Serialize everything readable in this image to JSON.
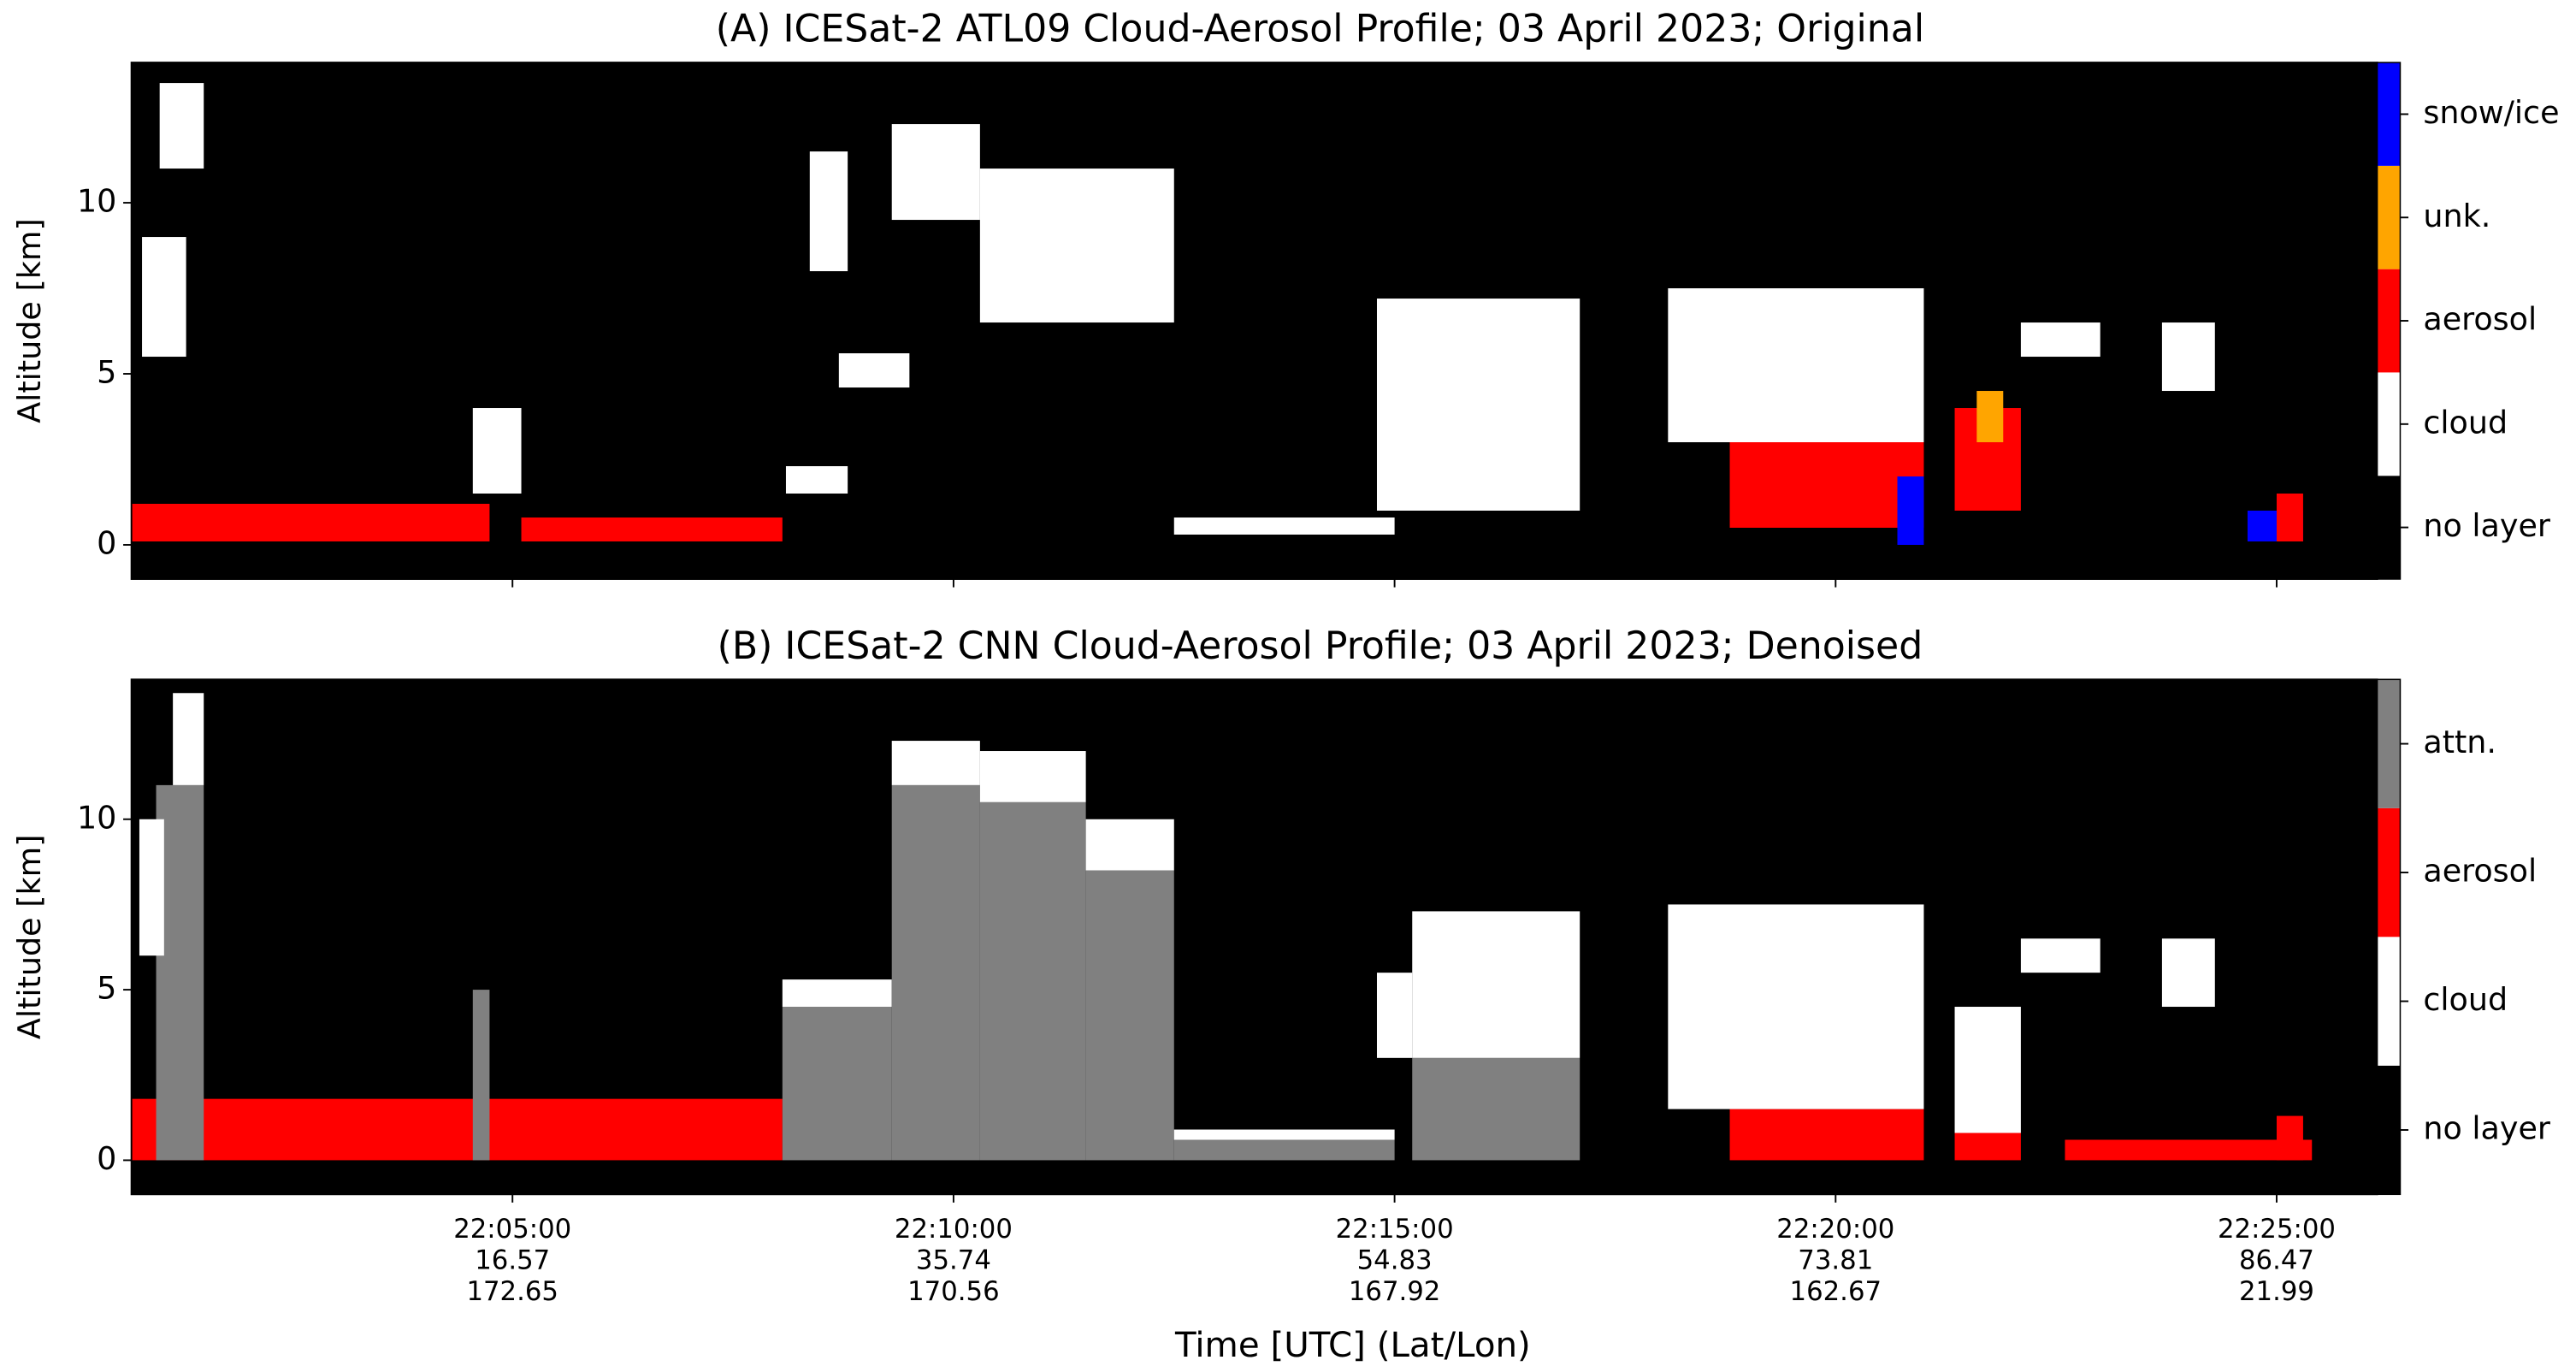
{
  "chart_data": [
    {
      "type": "heatmap",
      "title": "(A) ICESat-2 ATL09 Cloud-Aerosol Profile; 03 April 2023; Original",
      "ylabel": "Altitude [km]",
      "xlim": [
        0.68,
        26.14
      ],
      "ylim": [
        -1,
        14.1
      ],
      "yticks": [
        0,
        5,
        10
      ],
      "background": "#000000",
      "colorbar": {
        "labels": [
          "no layer",
          "cloud",
          "aerosol",
          "unk.",
          "snow/ice"
        ],
        "colors": [
          "#000000",
          "#ffffff",
          "#ff0000",
          "#ffa500",
          "#0000ff"
        ]
      },
      "features": [
        {
          "start": 0.68,
          "end": 4.74,
          "bottom": 0.1,
          "top": 1.2,
          "class": 2
        },
        {
          "start": 1.0,
          "end": 1.5,
          "bottom": 11,
          "top": 13.5,
          "class": 1
        },
        {
          "start": 0.8,
          "end": 1.3,
          "bottom": 5.5,
          "top": 9,
          "class": 1
        },
        {
          "start": 4.55,
          "end": 5.1,
          "bottom": 1.5,
          "top": 4,
          "class": 1
        },
        {
          "start": 5.1,
          "end": 8.06,
          "bottom": 0.1,
          "top": 0.8,
          "class": 2
        },
        {
          "start": 8.1,
          "end": 8.8,
          "bottom": 1.5,
          "top": 2.3,
          "class": 1
        },
        {
          "start": 8.37,
          "end": 8.8,
          "bottom": 8,
          "top": 11.5,
          "class": 1
        },
        {
          "start": 8.7,
          "end": 9.5,
          "bottom": 4.6,
          "top": 5.6,
          "class": 1
        },
        {
          "start": 9.3,
          "end": 10.3,
          "bottom": 9.5,
          "top": 12.3,
          "class": 1
        },
        {
          "start": 10.3,
          "end": 12.5,
          "bottom": 6.5,
          "top": 11,
          "class": 1
        },
        {
          "start": 12.5,
          "end": 15,
          "bottom": 0.3,
          "top": 0.8,
          "class": 1
        },
        {
          "start": 14.8,
          "end": 17.1,
          "bottom": 1,
          "top": 7.2,
          "class": 1
        },
        {
          "start": 18.8,
          "end": 21,
          "bottom": 0.5,
          "top": 3,
          "class": 2
        },
        {
          "start": 18.1,
          "end": 21,
          "bottom": 3,
          "top": 7.5,
          "class": 1
        },
        {
          "start": 20.7,
          "end": 21,
          "bottom": 0,
          "top": 2,
          "class": 4
        },
        {
          "start": 21.35,
          "end": 22.1,
          "bottom": 1,
          "top": 4,
          "class": 2
        },
        {
          "start": 21.6,
          "end": 21.9,
          "bottom": 3,
          "top": 4.5,
          "class": 3
        },
        {
          "start": 22.1,
          "end": 23.0,
          "bottom": 5.5,
          "top": 6.5,
          "class": 1
        },
        {
          "start": 23.7,
          "end": 24.3,
          "bottom": 4.5,
          "top": 6.5,
          "class": 1
        },
        {
          "start": 24.67,
          "end": 25.3,
          "bottom": 0.1,
          "top": 1,
          "class": 4
        },
        {
          "start": 25.0,
          "end": 25.3,
          "bottom": 0.1,
          "top": 1.5,
          "class": 2
        }
      ]
    },
    {
      "type": "heatmap",
      "title": "(B) ICESat-2 CNN Cloud-Aerosol Profile; 03 April 2023; Denoised",
      "ylabel": "Altitude [km]",
      "xlabel": "Time [UTC] (Lat/Lon)",
      "xlim": [
        0.68,
        26.14
      ],
      "ylim": [
        -1,
        14.1
      ],
      "yticks": [
        0,
        5,
        10
      ],
      "background": "#000000",
      "xticks": [
        {
          "value": 5,
          "label": "22:05:00"
        },
        {
          "value": 10,
          "label": "22:10:00"
        },
        {
          "value": 15,
          "label": "22:15:00"
        },
        {
          "value": 20,
          "label": "22:20:00"
        },
        {
          "value": 25,
          "label": "22:25:00"
        }
      ],
      "xtick_lat": [
        "16.57",
        "35.74",
        "54.83",
        "73.81",
        "86.47"
      ],
      "xtick_lon": [
        "172.65",
        "170.56",
        "167.92",
        "162.67",
        "21.99"
      ],
      "colorbar": {
        "labels": [
          "no layer",
          "cloud",
          "aerosol",
          "attn."
        ],
        "colors": [
          "#000000",
          "#ffffff",
          "#ff0000",
          "#808080"
        ]
      },
      "features": [
        {
          "start": 0.68,
          "end": 8.06,
          "bottom": 0,
          "top": 1.8,
          "class": 2
        },
        {
          "start": 0.96,
          "end": 1.5,
          "bottom": 0,
          "top": 11,
          "class": 3
        },
        {
          "start": 1.15,
          "end": 1.5,
          "bottom": 11,
          "top": 13.7,
          "class": 1
        },
        {
          "start": 0.77,
          "end": 1.05,
          "bottom": 6,
          "top": 10,
          "class": 1
        },
        {
          "start": 4.55,
          "end": 4.74,
          "bottom": 0,
          "top": 5,
          "class": 3
        },
        {
          "start": 8.06,
          "end": 9.3,
          "bottom": 0,
          "top": 4.5,
          "class": 3
        },
        {
          "start": 8.06,
          "end": 9.3,
          "bottom": 4.5,
          "top": 5.3,
          "class": 1
        },
        {
          "start": 9.3,
          "end": 10.3,
          "bottom": 0,
          "top": 11,
          "class": 3
        },
        {
          "start": 9.3,
          "end": 10.3,
          "bottom": 11,
          "top": 12.3,
          "class": 1
        },
        {
          "start": 10.3,
          "end": 11.5,
          "bottom": 0,
          "top": 10.5,
          "class": 3
        },
        {
          "start": 10.3,
          "end": 11.5,
          "bottom": 10.5,
          "top": 12,
          "class": 1
        },
        {
          "start": 11.5,
          "end": 12.5,
          "bottom": 0,
          "top": 8.5,
          "class": 3
        },
        {
          "start": 11.5,
          "end": 12.5,
          "bottom": 8.5,
          "top": 10,
          "class": 1
        },
        {
          "start": 12.5,
          "end": 15,
          "bottom": 0,
          "top": 0.6,
          "class": 3
        },
        {
          "start": 12.5,
          "end": 15,
          "bottom": 0.6,
          "top": 0.9,
          "class": 1
        },
        {
          "start": 15.2,
          "end": 17.1,
          "bottom": 0,
          "top": 3,
          "class": 3
        },
        {
          "start": 15.2,
          "end": 17.1,
          "bottom": 3,
          "top": 7.3,
          "class": 1
        },
        {
          "start": 14.8,
          "end": 15.2,
          "bottom": 3,
          "top": 5.5,
          "class": 1
        },
        {
          "start": 18.8,
          "end": 21,
          "bottom": 0,
          "top": 1.5,
          "class": 2
        },
        {
          "start": 18.1,
          "end": 21,
          "bottom": 1.5,
          "top": 7.5,
          "class": 1
        },
        {
          "start": 21.35,
          "end": 22.1,
          "bottom": 0,
          "top": 0.8,
          "class": 2
        },
        {
          "start": 21.35,
          "end": 22.1,
          "bottom": 0.8,
          "top": 4.5,
          "class": 1
        },
        {
          "start": 22.1,
          "end": 23.0,
          "bottom": 5.5,
          "top": 6.5,
          "class": 1
        },
        {
          "start": 23.7,
          "end": 24.3,
          "bottom": 4.5,
          "top": 6.5,
          "class": 1
        },
        {
          "start": 22.6,
          "end": 25.4,
          "bottom": 0,
          "top": 0.6,
          "class": 2
        },
        {
          "start": 25.0,
          "end": 25.3,
          "bottom": 0,
          "top": 1.3,
          "class": 2
        }
      ]
    }
  ]
}
